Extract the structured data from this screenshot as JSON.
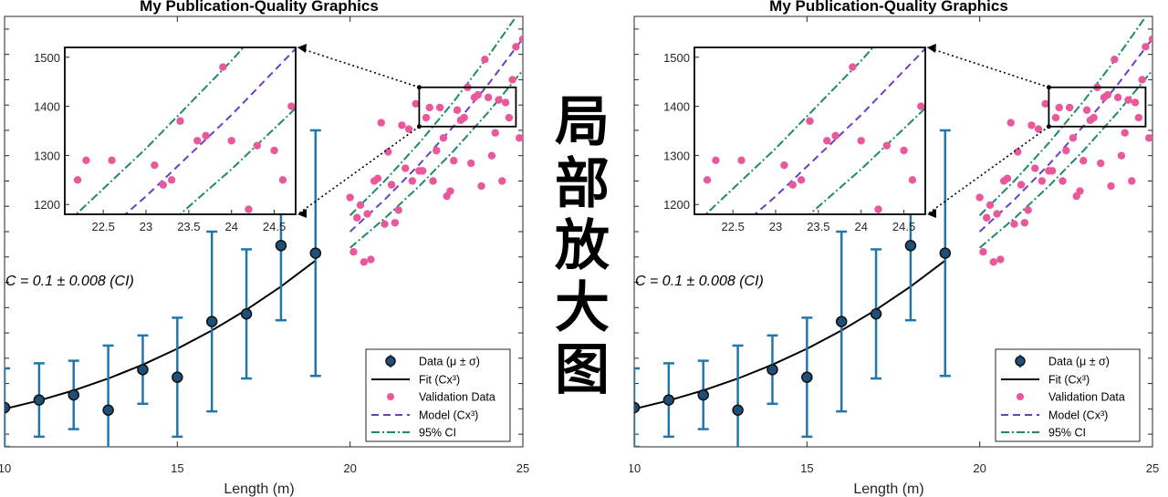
{
  "banner": {
    "chars": [
      "局",
      "部",
      "放",
      "大",
      "图"
    ]
  },
  "colors": {
    "data": "#2277aa",
    "data_face": "#1f4e79",
    "fit": "#000000",
    "validation": "#e8589a",
    "model": "#6a3fc8",
    "ci": "#1e8a64"
  },
  "chart_data": [
    {
      "type": "scatter",
      "title": "My Publication-Quality Graphics",
      "xlabel": "Length (m)",
      "ylabel": "",
      "xlim": [
        10,
        25
      ],
      "xticks": [
        "10",
        "15",
        "20",
        "25"
      ],
      "annotation": "C = 0.1 ± 0.008 (CI)",
      "legend": {
        "placement": "bottom-right",
        "entries": [
          "Data (μ ± σ)",
          "Fit (Cx³)",
          "Validation Data",
          "Model (Cx³)",
          "95% CI"
        ]
      },
      "series": [
        {
          "name": "Data (μ ± σ)",
          "x": [
            10,
            11,
            12,
            13,
            14,
            15,
            16,
            17,
            18,
            19
          ],
          "y": [
            105,
            135,
            155,
            95,
            255,
            225,
            445,
            475,
            745,
            715
          ],
          "err": [
            155,
            145,
            135,
            255,
            135,
            235,
            355,
            255,
            295,
            485
          ]
        },
        {
          "name": "Fit (Cx³)",
          "x": [
            10,
            11,
            12,
            13,
            14,
            15,
            16,
            17,
            18,
            19
          ],
          "y": [
            100,
            133.1,
            172.8,
            219.7,
            274.4,
            337.5,
            409.6,
            491.3,
            583.2,
            685.9
          ]
        },
        {
          "name": "Validation Data",
          "x": [
            20.0,
            20.1,
            20.2,
            20.3,
            20.4,
            20.5,
            20.6,
            20.7,
            20.8,
            20.9,
            21.0,
            21.1,
            21.2,
            21.3,
            21.4,
            21.5,
            21.6,
            21.7,
            21.8,
            21.9,
            22.0,
            22.1,
            22.2,
            22.3,
            22.4,
            22.5,
            22.6,
            22.7,
            22.8,
            22.9,
            23.0,
            23.1,
            23.2,
            23.3,
            23.4,
            23.5,
            23.6,
            23.7,
            23.8,
            23.9,
            24.0,
            24.1,
            24.2,
            24.3,
            24.4,
            24.5,
            24.6,
            24.7,
            24.8,
            24.9,
            25.0
          ],
          "y": [
            935,
            720,
            855,
            905,
            680,
            870,
            690,
            1000,
            1010,
            1230,
            830,
            1115,
            985,
            835,
            885,
            1220,
            1050,
            1205,
            1000,
            1305,
            1040,
            1040,
            1250,
            1290,
            1000,
            1120,
            1290,
            1170,
            940,
            960,
            1080,
            1280,
            1240,
            1250,
            1370,
            1070,
            1330,
            1340,
            980,
            1480,
            1330,
            1100,
            1190,
            1320,
            1000,
            1310,
            1250,
            1400,
            1530,
            1170,
            1560
          ]
        },
        {
          "name": "Model (Cx³)",
          "x": [
            20,
            21,
            22,
            23,
            24,
            25
          ],
          "y": [
            800,
            926.1,
            1064.8,
            1216.7,
            1382.4,
            1562.5
          ]
        },
        {
          "name": "95% CI",
          "x": [
            20,
            21,
            22,
            23,
            24,
            25
          ],
          "upper": [
            864,
            1000.2,
            1150,
            1314,
            1493,
            1687.5
          ],
          "lower": [
            736,
            852,
            979.6,
            1119.4,
            1271.8,
            1437.5
          ]
        }
      ],
      "inset": {
        "xlim": [
          22.05,
          24.75
        ],
        "ylim": [
          1180,
          1520
        ],
        "xticks": [
          "22.5",
          "23",
          "23.5",
          "24",
          "24.5"
        ],
        "yticks": [
          "1200",
          "1300",
          "1400",
          "1500"
        ],
        "zoom_region": {
          "x": [
            22,
            24.8
          ],
          "y": [
            1215,
            1370
          ]
        }
      }
    },
    {
      "type": "scatter",
      "title": "My Publication-Quality Graphics",
      "xlabel": "Length (m)",
      "ylabel": "",
      "xlim": [
        10,
        25
      ],
      "xticks": [
        "10",
        "15",
        "20",
        "25"
      ],
      "annotation": "C = 0.1 ± 0.008 (CI)",
      "legend": {
        "placement": "bottom-right",
        "entries": [
          "Data (μ ± σ)",
          "Fit (Cx³)",
          "Validation Data",
          "Model (Cx³)",
          "95% CI"
        ]
      },
      "inset": {
        "xlim": [
          22.05,
          24.75
        ],
        "ylim": [
          1180,
          1520
        ],
        "xticks": [
          "22.5",
          "23",
          "23.5",
          "24",
          "24.5"
        ],
        "yticks": [
          "1200",
          "1300",
          "1400",
          "1500"
        ]
      },
      "same_data_as_chart": 0
    }
  ]
}
